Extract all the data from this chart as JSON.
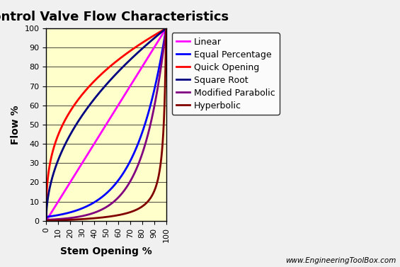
{
  "title": "Control Valve Flow Characteristics",
  "xlabel": "Stem Opening %",
  "ylabel": "Flow %",
  "watermark": "www.EngineeringToolBox.com",
  "xlim": [
    0,
    100
  ],
  "ylim": [
    0,
    100
  ],
  "xticks": [
    0,
    10,
    20,
    30,
    40,
    50,
    60,
    70,
    80,
    90,
    100
  ],
  "yticks": [
    0,
    10,
    20,
    30,
    40,
    50,
    60,
    70,
    80,
    90,
    100
  ],
  "plot_bg_color": "#ffffcc",
  "fig_bg_color": "#f0f0f0",
  "series": [
    {
      "label": "Linear",
      "color": "#ff00ff",
      "linewidth": 2.0,
      "type": "linear"
    },
    {
      "label": "Equal Percentage",
      "color": "#0000ff",
      "linewidth": 2.0,
      "type": "equal_percentage",
      "rangeability": 50
    },
    {
      "label": "Quick Opening",
      "color": "#ff0000",
      "linewidth": 2.0,
      "type": "quick_opening"
    },
    {
      "label": "Square Root",
      "color": "#000080",
      "linewidth": 2.0,
      "type": "square_root"
    },
    {
      "label": "Modified Parabolic",
      "color": "#800080",
      "linewidth": 2.0,
      "type": "modified_parabolic"
    },
    {
      "label": "Hyperbolic",
      "color": "#800000",
      "linewidth": 2.0,
      "type": "hyperbolic",
      "rangeability": 50
    }
  ],
  "title_fontsize": 13,
  "label_fontsize": 10,
  "tick_fontsize": 8,
  "legend_fontsize": 9
}
